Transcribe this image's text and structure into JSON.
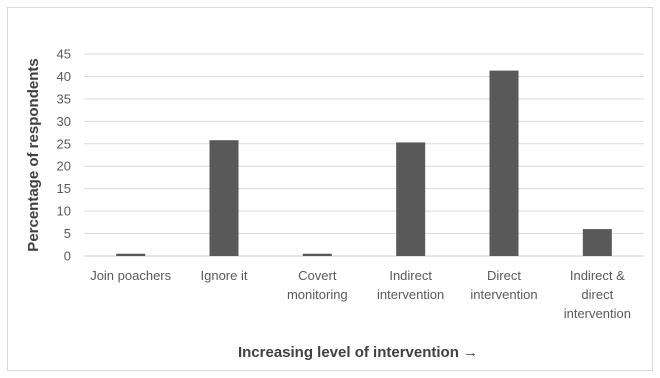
{
  "chart_data": {
    "type": "bar",
    "categories": [
      [
        "Join poachers"
      ],
      [
        "Ignore it"
      ],
      [
        "Covert",
        "monitoring"
      ],
      [
        "Indirect",
        "intervention"
      ],
      [
        "Direct",
        "intervention"
      ],
      [
        "Indirect &",
        "direct",
        "intervention"
      ]
    ],
    "values": [
      0.5,
      25.8,
      0.5,
      25.3,
      41.3,
      6.0
    ],
    "ylim": [
      0,
      45
    ],
    "yticks": [
      0,
      5,
      10,
      15,
      20,
      25,
      30,
      35,
      40,
      45
    ],
    "xlabel": "Increasing level of intervention  →",
    "ylabel": "Percentage of respondents",
    "grid": true,
    "legend": "none",
    "bar_color": "#595959",
    "grid_color": "#d9d9d9"
  }
}
